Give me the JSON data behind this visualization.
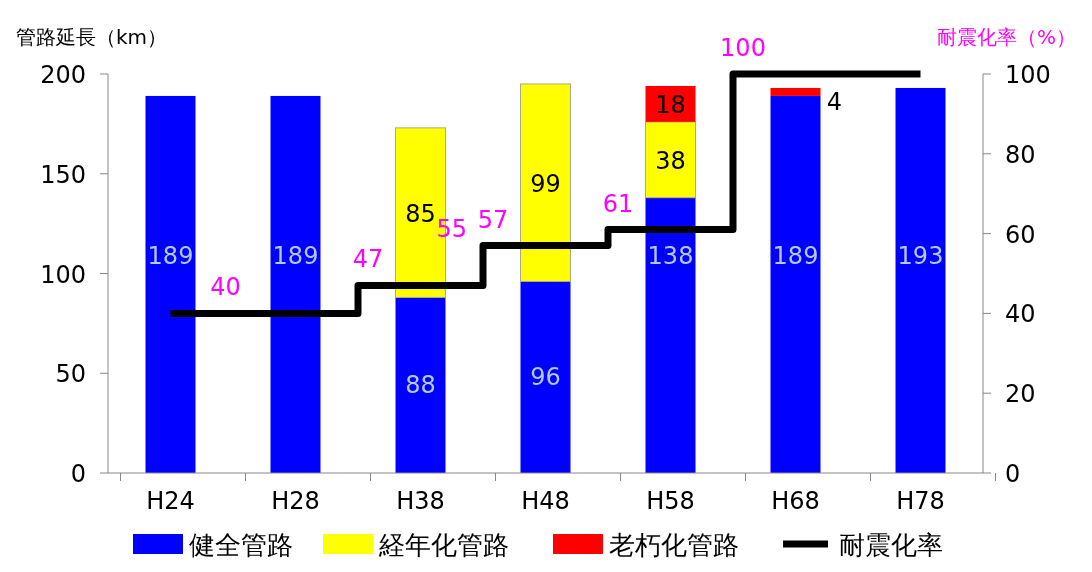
{
  "chart_data": {
    "type": "bar",
    "stacked": true,
    "ylabel": "管路延長（km）",
    "y2label": "耐震化率（%）",
    "categories": [
      "H24",
      "H28",
      "H38",
      "H48",
      "H58",
      "H68",
      "H78"
    ],
    "series": [
      {
        "name": "健全管路",
        "color": "#0000ff",
        "values": [
          189,
          189,
          88,
          96,
          138,
          189,
          193
        ]
      },
      {
        "name": "経年化管路",
        "color": "#ffff00",
        "values": [
          null,
          null,
          85,
          99,
          38,
          null,
          null
        ]
      },
      {
        "name": "老朽化管路",
        "color": "#ff0000",
        "values": [
          null,
          null,
          null,
          null,
          18,
          4,
          null
        ]
      },
      {
        "name": "耐震化率",
        "type": "step",
        "axis": "y2",
        "color": "#000000",
        "values": [
          40,
          40,
          47,
          57,
          61,
          100,
          100
        ],
        "value_labels": [
          "40",
          null,
          "47",
          "57",
          "61",
          "100",
          null
        ]
      }
    ],
    "annotations": [
      "55"
    ],
    "data_labels": true,
    "ylim": [
      0,
      200
    ],
    "yticks": [
      0,
      50,
      100,
      150,
      200
    ],
    "y2lim": [
      0,
      100
    ],
    "y2ticks": [
      0,
      20,
      40,
      60,
      80,
      100
    ],
    "grid": false,
    "legend": "bottom",
    "marker": "none",
    "line_style": "solid"
  }
}
